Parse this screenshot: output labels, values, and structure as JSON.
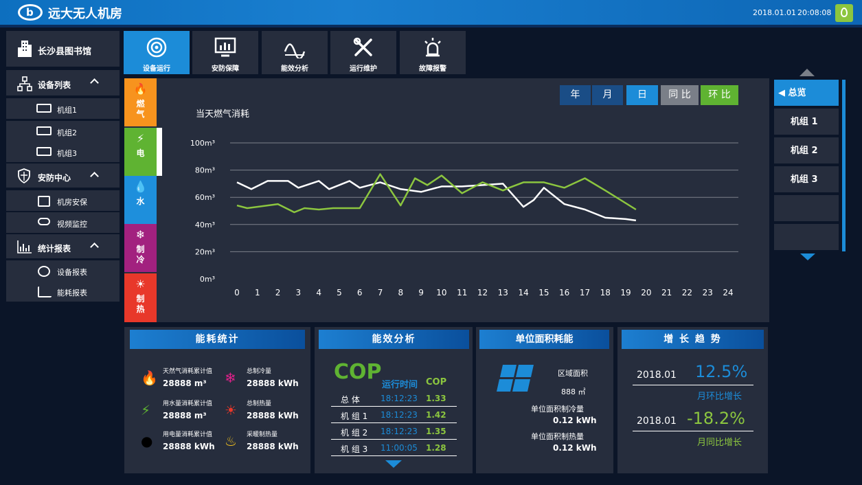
{
  "header": {
    "title": "远大无人机房",
    "date": "2018.01.01",
    "time": "20:08:08",
    "logo_glyph": "b",
    "pin_icon": "location-pin-icon"
  },
  "sidebar": {
    "building": "长沙县图书馆",
    "sections": [
      {
        "label": "设备列表",
        "items": [
          "机组1",
          "机组2",
          "机组3"
        ]
      },
      {
        "label": "安防中心",
        "items": [
          "机房安保",
          "视频监控"
        ]
      },
      {
        "label": "统计报表",
        "items": [
          "设备报表",
          "能耗报表"
        ]
      }
    ]
  },
  "tabs": [
    "设备运行",
    "安防保障",
    "能效分析",
    "运行维护",
    "故障报警"
  ],
  "energy_tabs": [
    {
      "glyph": "🔥",
      "label": "燃\n气",
      "color": "#f7931e"
    },
    {
      "glyph": "⚡",
      "label": "电",
      "color": "#5fb332"
    },
    {
      "glyph": "💧",
      "label": "水",
      "color": "#1e8fdc"
    },
    {
      "glyph": "❄",
      "label": "制\n冷",
      "color": "#a2217f"
    },
    {
      "glyph": "☀",
      "label": "制\n热",
      "color": "#e8382a"
    }
  ],
  "range_buttons": [
    "年",
    "月",
    "日"
  ],
  "compare_buttons": [
    "同 比",
    "环 比"
  ],
  "colors": {
    "accent": "#1c8cd8",
    "green": "#8cc63f",
    "panel": "#262d3d",
    "bg": "#0b1528"
  },
  "chart_data": {
    "type": "line",
    "title": "当天燃气消耗",
    "y_ticks": [
      "100m³",
      "80m³",
      "60m³",
      "40m³",
      "20m³",
      "0m³"
    ],
    "ylim": [
      0,
      100
    ],
    "x_ticks": [
      "0",
      "1",
      "2",
      "3",
      "4",
      "5",
      "6",
      "7",
      "8",
      "9",
      "10",
      "11",
      "12",
      "13",
      "14",
      "15",
      "16",
      "17",
      "18",
      "19",
      "20",
      "21",
      "22",
      "23",
      "24"
    ],
    "xlim": [
      0,
      24
    ],
    "series": [
      {
        "color": "#ffffff",
        "x": [
          0,
          0.7,
          1.5,
          2.5,
          3,
          4,
          4.5,
          5.5,
          6,
          7,
          8,
          9,
          10,
          11,
          12,
          13,
          14,
          14.5,
          15,
          16,
          17,
          18,
          19,
          19.5
        ],
        "y": [
          71,
          66,
          72,
          72,
          67,
          72,
          66,
          72,
          67,
          71,
          66,
          64,
          68,
          68,
          69,
          70,
          53,
          58,
          67,
          55,
          51,
          45,
          44,
          43
        ]
      },
      {
        "color": "#8cc63f",
        "x": [
          0,
          0.5,
          2,
          2.8,
          3.3,
          4,
          4.7,
          5.3,
          6,
          7,
          8,
          8.7,
          9.3,
          10,
          11,
          12,
          13,
          13.3,
          14,
          15,
          16,
          17,
          18,
          19.5
        ],
        "y": [
          54,
          52,
          55,
          49,
          52,
          51,
          52,
          52,
          52,
          77,
          54,
          74,
          69,
          76,
          63,
          71,
          65,
          67,
          71,
          71,
          67,
          74,
          65,
          51
        ]
      }
    ]
  },
  "right_list": [
    "总览",
    "机组 1",
    "机组 2",
    "机组 3"
  ],
  "energy_stats": {
    "title": "能耗统计",
    "items": [
      {
        "icon": "flame-icon",
        "label": "天然气消耗累计值",
        "value": "28888 m³"
      },
      {
        "icon": "snowflake-icon",
        "label": "总制冷量",
        "value": "28888 kWh"
      },
      {
        "icon": "bolt-icon",
        "label": "用水量消耗累计值",
        "value": "28888 m³"
      },
      {
        "icon": "sun-icon",
        "label": "总制热量",
        "value": "28888 kWh"
      },
      {
        "icon": "drop-icon",
        "label": "用电量消耗累计值",
        "value": "28888 kWh"
      },
      {
        "icon": "heater-icon",
        "label": "采暖制热量",
        "value": "28888 kWh"
      }
    ]
  },
  "efficiency": {
    "title": "能效分析",
    "cop_big": "COP",
    "col_time": "运行时间",
    "col_cop": "COP",
    "rows": [
      {
        "name": "总 体",
        "time": "18:12:23",
        "cop": "1.33"
      },
      {
        "name": "机 组 1",
        "time": "18:12:23",
        "cop": "1.42"
      },
      {
        "name": "机 组 2",
        "time": "18:12:23",
        "cop": "1.35"
      },
      {
        "name": "机 组 3",
        "time": "11:00:05",
        "cop": "1.28"
      }
    ]
  },
  "unit_area": {
    "title": "单位面积耗能",
    "area_label": "区域面积",
    "area_value": "888 ㎡",
    "cool_label": "单位面积制冷量",
    "cool_value": "0.12 kWh",
    "heat_label": "单位面积制热量",
    "heat_value": "0.12 kWh"
  },
  "growth": {
    "title": "增 长 趋 势",
    "rows": [
      {
        "date": "2018.01",
        "value": "12.5%",
        "label": "月环比增长"
      },
      {
        "date": "2018.01",
        "value": "-18.2%",
        "label": "月同比增长"
      }
    ]
  }
}
